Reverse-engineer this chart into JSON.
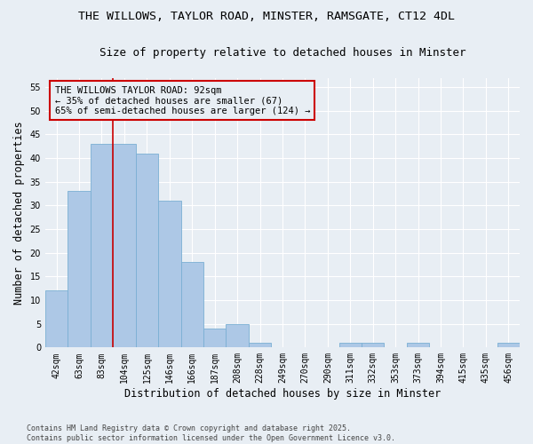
{
  "title1": "THE WILLOWS, TAYLOR ROAD, MINSTER, RAMSGATE, CT12 4DL",
  "title2": "Size of property relative to detached houses in Minster",
  "xlabel": "Distribution of detached houses by size in Minster",
  "ylabel": "Number of detached properties",
  "categories": [
    "42sqm",
    "63sqm",
    "83sqm",
    "104sqm",
    "125sqm",
    "146sqm",
    "166sqm",
    "187sqm",
    "208sqm",
    "228sqm",
    "249sqm",
    "270sqm",
    "290sqm",
    "311sqm",
    "332sqm",
    "353sqm",
    "373sqm",
    "394sqm",
    "415sqm",
    "435sqm",
    "456sqm"
  ],
  "values": [
    12,
    33,
    43,
    43,
    41,
    31,
    18,
    4,
    5,
    1,
    0,
    0,
    0,
    1,
    1,
    0,
    1,
    0,
    0,
    0,
    1
  ],
  "bar_color": "#adc8e6",
  "bar_edge_color": "#7aafd4",
  "property_line_color": "#cc0000",
  "annotation_title": "THE WILLOWS TAYLOR ROAD: 92sqm",
  "annotation_line1": "← 35% of detached houses are smaller (67)",
  "annotation_line2": "65% of semi-detached houses are larger (124) →",
  "annotation_box_color": "#cc0000",
  "ylim": [
    0,
    57
  ],
  "yticks": [
    0,
    5,
    10,
    15,
    20,
    25,
    30,
    35,
    40,
    45,
    50,
    55
  ],
  "footer": "Contains HM Land Registry data © Crown copyright and database right 2025.\nContains public sector information licensed under the Open Government Licence v3.0.",
  "background_color": "#e8eef4",
  "grid_color": "#ffffff",
  "title_fontsize": 9.5,
  "subtitle_fontsize": 9,
  "tick_fontsize": 7,
  "label_fontsize": 8.5,
  "annotation_fontsize": 7.5,
  "footer_fontsize": 6
}
